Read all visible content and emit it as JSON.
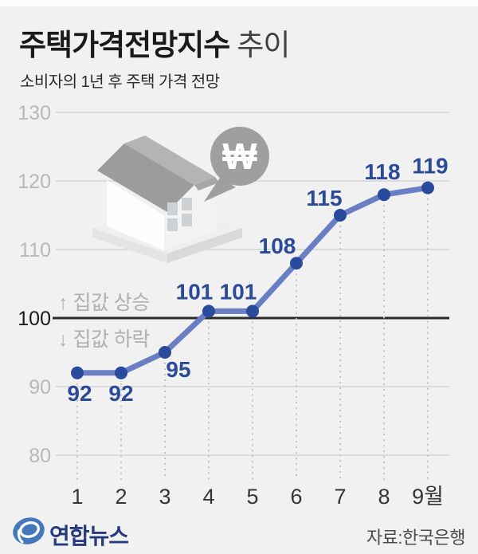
{
  "header": {
    "title_main": "주택가격전망지수",
    "title_sub": "추이",
    "subtitle": "소비자의 1년 후 주택 가격 전망"
  },
  "annotations": {
    "above_baseline": "↑ 집값 상승",
    "below_baseline": "↓ 집값 하락"
  },
  "icons": {
    "won_symbol": "₩"
  },
  "chart_data": {
    "type": "line",
    "title": "주택가격전망지수 추이",
    "subtitle": "소비자의 1년 후 주택 가격 전망",
    "categories": [
      "1",
      "2",
      "3",
      "4",
      "5",
      "6",
      "7",
      "8",
      "9월"
    ],
    "values": [
      92,
      92,
      95,
      101,
      101,
      108,
      115,
      118,
      119
    ],
    "series_name": "주택가격전망지수",
    "yticks": [
      130,
      120,
      110,
      100,
      90,
      80
    ],
    "ylim": [
      80,
      130
    ],
    "baseline_value": 100,
    "grid": true,
    "legend": "none",
    "colors": {
      "line": "#6a7fc3",
      "point": "#2a4b9b",
      "label": "#2b4a98",
      "grid": "#cfcfcf",
      "baseline_line": "#2b2b2b",
      "drop_line": "#c3c3c3",
      "ytick": "#b8b8b8",
      "ytick_emphasis": "#1b1b1b",
      "xtick": "#363636"
    }
  },
  "footer": {
    "brand": "연합뉴스",
    "source": "자료:한국은행"
  }
}
